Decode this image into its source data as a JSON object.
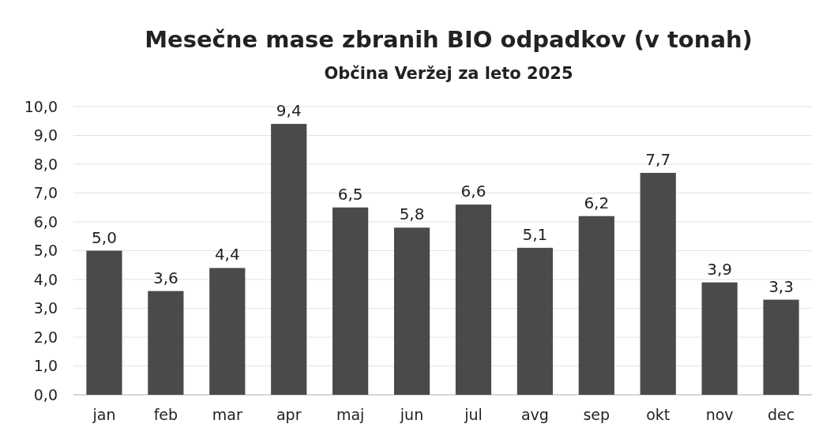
{
  "chart_data": {
    "type": "bar",
    "title": "Mesečne mase zbranih BIO odpadkov (v tonah)",
    "subtitle": "Občina Veržej za leto 2025",
    "categories": [
      "jan",
      "feb",
      "mar",
      "apr",
      "maj",
      "jun",
      "jul",
      "avg",
      "sep",
      "okt",
      "nov",
      "dec"
    ],
    "values": [
      5.0,
      3.6,
      4.4,
      9.4,
      6.5,
      5.8,
      6.6,
      5.1,
      6.2,
      7.7,
      3.9,
      3.3
    ],
    "value_labels": [
      "5,0",
      "3,6",
      "4,4",
      "9,4",
      "6,5",
      "5,8",
      "6,6",
      "5,1",
      "6,2",
      "7,7",
      "3,9",
      "3,3"
    ],
    "color": "#4a4a4a",
    "ylim": [
      0,
      10
    ],
    "yticks": [
      {
        "value": 0,
        "label": "0,0"
      },
      {
        "value": 1,
        "label": "1,0"
      },
      {
        "value": 2,
        "label": "2,0"
      },
      {
        "value": 3,
        "label": "3,0"
      },
      {
        "value": 4,
        "label": "4,0"
      },
      {
        "value": 5,
        "label": "5,0"
      },
      {
        "value": 6,
        "label": "6,0"
      },
      {
        "value": 7,
        "label": "7,0"
      },
      {
        "value": 8,
        "label": "8,0"
      },
      {
        "value": 9,
        "label": "9,0"
      },
      {
        "value": 10,
        "label": "10,0"
      }
    ],
    "grid": true
  }
}
